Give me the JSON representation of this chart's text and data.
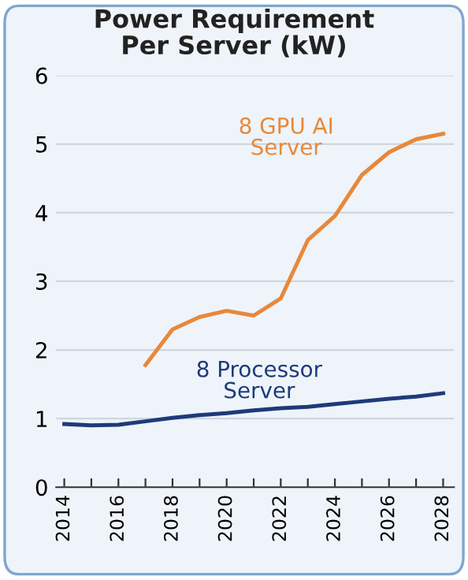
{
  "chart_data": {
    "type": "line",
    "title": "Power Requirement\nPer Server (kW)",
    "x": [
      2014,
      2015,
      2016,
      2017,
      2018,
      2019,
      2020,
      2021,
      2022,
      2023,
      2024,
      2025,
      2026,
      2027,
      2028
    ],
    "series": [
      {
        "name": "8 GPU AI\nServer",
        "color": "#e8883a",
        "values": [
          null,
          null,
          null,
          1.78,
          2.3,
          2.48,
          2.57,
          2.5,
          2.75,
          3.6,
          3.95,
          4.55,
          4.88,
          5.07,
          5.15
        ]
      },
      {
        "name": "8 Processor\nServer",
        "color": "#1f3a7a",
        "values": [
          0.92,
          0.9,
          0.91,
          0.96,
          1.01,
          1.05,
          1.08,
          1.12,
          1.15,
          1.17,
          1.21,
          1.25,
          1.29,
          1.32,
          1.37
        ]
      }
    ],
    "ylim": [
      0,
      6
    ],
    "yticks": [
      0,
      1,
      2,
      3,
      4,
      5,
      6
    ],
    "xlim": [
      2013.7,
      2028.4
    ],
    "xticks": [
      2014,
      {
        "value": 2015,
        "label": null
      },
      2016,
      {
        "value": 2017,
        "label": null
      },
      2018,
      {
        "value": 2019,
        "label": null
      },
      2020,
      {
        "value": 2021,
        "label": null
      },
      2022,
      {
        "value": 2023,
        "label": null
      },
      2024,
      {
        "value": 2025,
        "label": null
      },
      2026,
      {
        "value": 2027,
        "label": null
      },
      2028
    ],
    "grid": "y",
    "legend": false,
    "marker": "none",
    "line_style": "solid"
  }
}
